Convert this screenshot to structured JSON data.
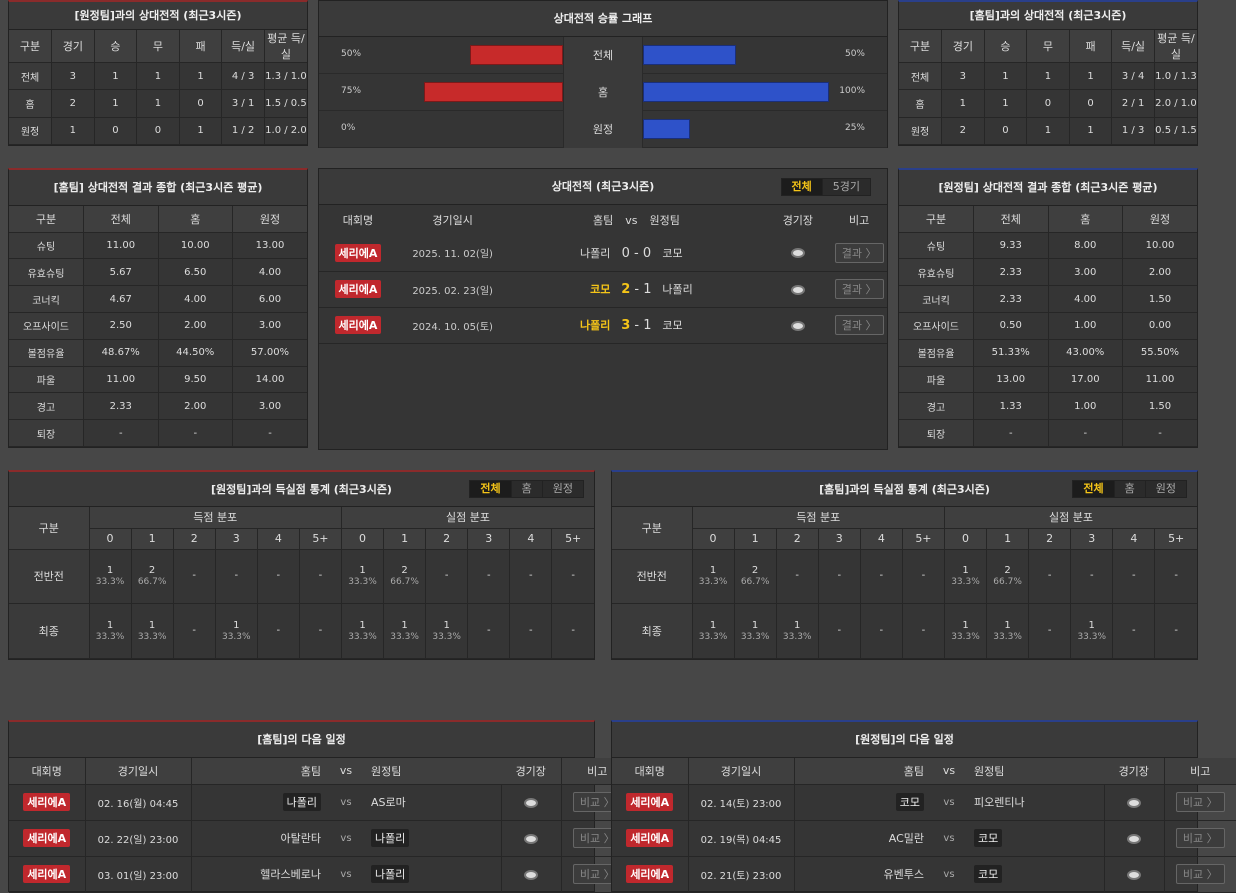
{
  "h2h_away": {
    "title": "[원정팀]과의 상대전적 (최근3시즌)",
    "headers": [
      "구분",
      "경기",
      "승",
      "무",
      "패",
      "득/실",
      "평균 득/실"
    ],
    "rows": [
      [
        "전체",
        "3",
        "1",
        "1",
        "1",
        "4 / 3",
        "1.3 / 1.0"
      ],
      [
        "홈",
        "2",
        "1",
        "1",
        "0",
        "3 / 1",
        "1.5 / 0.5"
      ],
      [
        "원정",
        "1",
        "0",
        "0",
        "1",
        "1 / 2",
        "1.0 / 2.0"
      ]
    ]
  },
  "graph": {
    "title": "상대전적 승률 그래프",
    "rows": [
      {
        "left": "50%",
        "label": "전체",
        "right": "50%",
        "lv": 50,
        "rv": 50
      },
      {
        "left": "75%",
        "label": "홈",
        "right": "100%",
        "lv": 75,
        "rv": 100
      },
      {
        "left": "0%",
        "label": "원정",
        "right": "25%",
        "lv": 0,
        "rv": 25
      }
    ]
  },
  "h2h_home": {
    "title": "[홈팀]과의 상대전적 (최근3시즌)",
    "headers": [
      "구분",
      "경기",
      "승",
      "무",
      "패",
      "득/실",
      "평균 득/실"
    ],
    "rows": [
      [
        "전체",
        "3",
        "1",
        "1",
        "1",
        "3 / 4",
        "1.0 / 1.3"
      ],
      [
        "홈",
        "1",
        "1",
        "0",
        "0",
        "2 / 1",
        "2.0 / 1.0"
      ],
      [
        "원정",
        "2",
        "0",
        "1",
        "1",
        "1 / 3",
        "0.5 / 1.5"
      ]
    ]
  },
  "summary_home": {
    "title": "[홈팀] 상대전적 결과 종합 (최근3시즌 평균)",
    "headers": [
      "구분",
      "전체",
      "홈",
      "원정"
    ],
    "rows": [
      [
        "슈팅",
        "11.00",
        "10.00",
        "13.00"
      ],
      [
        "유효슈팅",
        "5.67",
        "6.50",
        "4.00"
      ],
      [
        "코너킥",
        "4.67",
        "4.00",
        "6.00"
      ],
      [
        "오프사이드",
        "2.50",
        "2.00",
        "3.00"
      ],
      [
        "볼점유율",
        "48.67%",
        "44.50%",
        "57.00%"
      ],
      [
        "파울",
        "11.00",
        "9.50",
        "14.00"
      ],
      [
        "경고",
        "2.33",
        "2.00",
        "3.00"
      ],
      [
        "퇴장",
        "-",
        "-",
        "-"
      ]
    ]
  },
  "matches": {
    "title": "상대전적 (최근3시즌)",
    "tabs": [
      "전체",
      "5경기"
    ],
    "headers": {
      "league": "대회명",
      "date": "경기일시",
      "home": "홈팀",
      "vs": "vs",
      "away": "원정팀",
      "venue": "경기장",
      "note": "비고"
    },
    "rows": [
      {
        "league": "세리에A",
        "date": "2025. 11. 02(일)",
        "home": "나폴리",
        "hs": "0",
        "as": "0",
        "away": "코모",
        "btn": "결과 〉",
        "win": "none"
      },
      {
        "league": "세리에A",
        "date": "2025. 02. 23(일)",
        "home": "코모",
        "hs": "2",
        "as": "1",
        "away": "나폴리",
        "btn": "결과 〉",
        "win": "home"
      },
      {
        "league": "세리에A",
        "date": "2024. 10. 05(토)",
        "home": "나폴리",
        "hs": "3",
        "as": "1",
        "away": "코모",
        "btn": "결과 〉",
        "win": "home"
      }
    ]
  },
  "summary_away": {
    "title": "[원정팀] 상대전적 결과 종합 (최근3시즌 평균)",
    "headers": [
      "구분",
      "전체",
      "홈",
      "원정"
    ],
    "rows": [
      [
        "슈팅",
        "9.33",
        "8.00",
        "10.00"
      ],
      [
        "유효슈팅",
        "2.33",
        "3.00",
        "2.00"
      ],
      [
        "코너킥",
        "2.33",
        "4.00",
        "1.50"
      ],
      [
        "오프사이드",
        "0.50",
        "1.00",
        "0.00"
      ],
      [
        "볼점유율",
        "51.33%",
        "43.00%",
        "55.50%"
      ],
      [
        "파울",
        "13.00",
        "17.00",
        "11.00"
      ],
      [
        "경고",
        "1.33",
        "1.00",
        "1.50"
      ],
      [
        "퇴장",
        "-",
        "-",
        "-"
      ]
    ]
  },
  "goals_away": {
    "title": "[원정팀]과의 득실점 통계 (최근3시즌)",
    "tabs": [
      "전체",
      "홈",
      "원정"
    ],
    "label": "구분",
    "scored": "득점 분포",
    "conceded": "실점 분포",
    "cols": [
      "0",
      "1",
      "2",
      "3",
      "4",
      "5+"
    ],
    "rows": [
      {
        "name": "전반전",
        "cells": [
          [
            "1",
            "33.3%"
          ],
          [
            "2",
            "66.7%"
          ],
          [
            "-",
            ""
          ],
          [
            "-",
            ""
          ],
          [
            "-",
            ""
          ],
          [
            "-",
            ""
          ],
          [
            "1",
            "33.3%"
          ],
          [
            "2",
            "66.7%"
          ],
          [
            "-",
            ""
          ],
          [
            "-",
            ""
          ],
          [
            "-",
            ""
          ],
          [
            "-",
            ""
          ]
        ]
      },
      {
        "name": "최종",
        "cells": [
          [
            "1",
            "33.3%"
          ],
          [
            "1",
            "33.3%"
          ],
          [
            "-",
            ""
          ],
          [
            "1",
            "33.3%"
          ],
          [
            "-",
            ""
          ],
          [
            "-",
            ""
          ],
          [
            "1",
            "33.3%"
          ],
          [
            "1",
            "33.3%"
          ],
          [
            "1",
            "33.3%"
          ],
          [
            "-",
            ""
          ],
          [
            "-",
            ""
          ],
          [
            "-",
            ""
          ]
        ]
      }
    ]
  },
  "goals_home": {
    "title": "[홈팀]과의 득실점 통계 (최근3시즌)",
    "tabs": [
      "전체",
      "홈",
      "원정"
    ],
    "label": "구분",
    "scored": "득점 분포",
    "conceded": "실점 분포",
    "cols": [
      "0",
      "1",
      "2",
      "3",
      "4",
      "5+"
    ],
    "rows": [
      {
        "name": "전반전",
        "cells": [
          [
            "1",
            "33.3%"
          ],
          [
            "2",
            "66.7%"
          ],
          [
            "-",
            ""
          ],
          [
            "-",
            ""
          ],
          [
            "-",
            ""
          ],
          [
            "-",
            ""
          ],
          [
            "1",
            "33.3%"
          ],
          [
            "2",
            "66.7%"
          ],
          [
            "-",
            ""
          ],
          [
            "-",
            ""
          ],
          [
            "-",
            ""
          ],
          [
            "-",
            ""
          ]
        ]
      },
      {
        "name": "최종",
        "cells": [
          [
            "1",
            "33.3%"
          ],
          [
            "1",
            "33.3%"
          ],
          [
            "1",
            "33.3%"
          ],
          [
            "-",
            ""
          ],
          [
            "-",
            ""
          ],
          [
            "-",
            ""
          ],
          [
            "1",
            "33.3%"
          ],
          [
            "1",
            "33.3%"
          ],
          [
            "-",
            ""
          ],
          [
            "1",
            "33.3%"
          ],
          [
            "-",
            ""
          ],
          [
            "-",
            ""
          ]
        ]
      }
    ]
  },
  "next_home": {
    "title": "[홈팀]의 다음 일정",
    "headers": [
      "대회명",
      "경기일시",
      "홈팀",
      "vs",
      "원정팀",
      "경기장",
      "비고"
    ],
    "rows": [
      {
        "league": "세리에A",
        "date": "02. 16(월) 04:45",
        "home": "나폴리",
        "away": "AS로마",
        "hbox": true,
        "abox": false,
        "btn": "비교 〉"
      },
      {
        "league": "세리에A",
        "date": "02. 22(일) 23:00",
        "home": "아탈란타",
        "away": "나폴리",
        "hbox": false,
        "abox": true,
        "btn": "비교 〉"
      },
      {
        "league": "세리에A",
        "date": "03. 01(일) 23:00",
        "home": "헬라스베로나",
        "away": "나폴리",
        "hbox": false,
        "abox": true,
        "btn": "비교 〉"
      }
    ]
  },
  "next_away": {
    "title": "[원정팀]의 다음 일정",
    "headers": [
      "대회명",
      "경기일시",
      "홈팀",
      "vs",
      "원정팀",
      "경기장",
      "비고"
    ],
    "rows": [
      {
        "league": "세리에A",
        "date": "02. 14(토) 23:00",
        "home": "코모",
        "away": "피오렌티나",
        "hbox": true,
        "abox": false,
        "btn": "비교 〉"
      },
      {
        "league": "세리에A",
        "date": "02. 19(목) 04:45",
        "home": "AC밀란",
        "away": "코모",
        "hbox": false,
        "abox": true,
        "btn": "비교 〉"
      },
      {
        "league": "세리에A",
        "date": "02. 21(토) 23:00",
        "home": "유벤투스",
        "away": "코모",
        "hbox": false,
        "abox": true,
        "btn": "비교 〉"
      }
    ]
  }
}
